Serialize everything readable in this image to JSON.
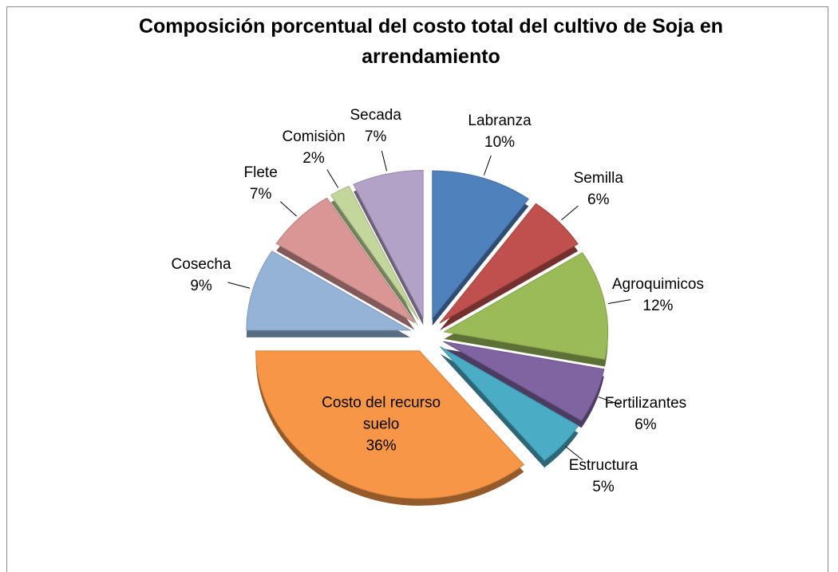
{
  "chart_data": {
    "type": "pie",
    "title": "Composición porcentual del costo total del cultivo de Soja en arrendamiento",
    "categories": [
      "Labranza",
      "Semilla",
      "Agroquimicos",
      "Fertilizantes",
      "Estructura",
      "Costo del recurso suelo",
      "Cosecha",
      "Flete",
      "Comisiòn",
      "Secada"
    ],
    "values": [
      10,
      6,
      12,
      6,
      5,
      36,
      9,
      7,
      2,
      7
    ],
    "value_labels": [
      "10%",
      "6%",
      "12%",
      "6%",
      "5%",
      "36%",
      "9%",
      "7%",
      "2%",
      "7%"
    ],
    "colors": [
      "#4f81bd",
      "#c0504d",
      "#9bbb59",
      "#8064a2",
      "#4bacc6",
      "#f79646",
      "#95b3d7",
      "#d99694",
      "#c3d69b",
      "#b3a2c7"
    ]
  }
}
